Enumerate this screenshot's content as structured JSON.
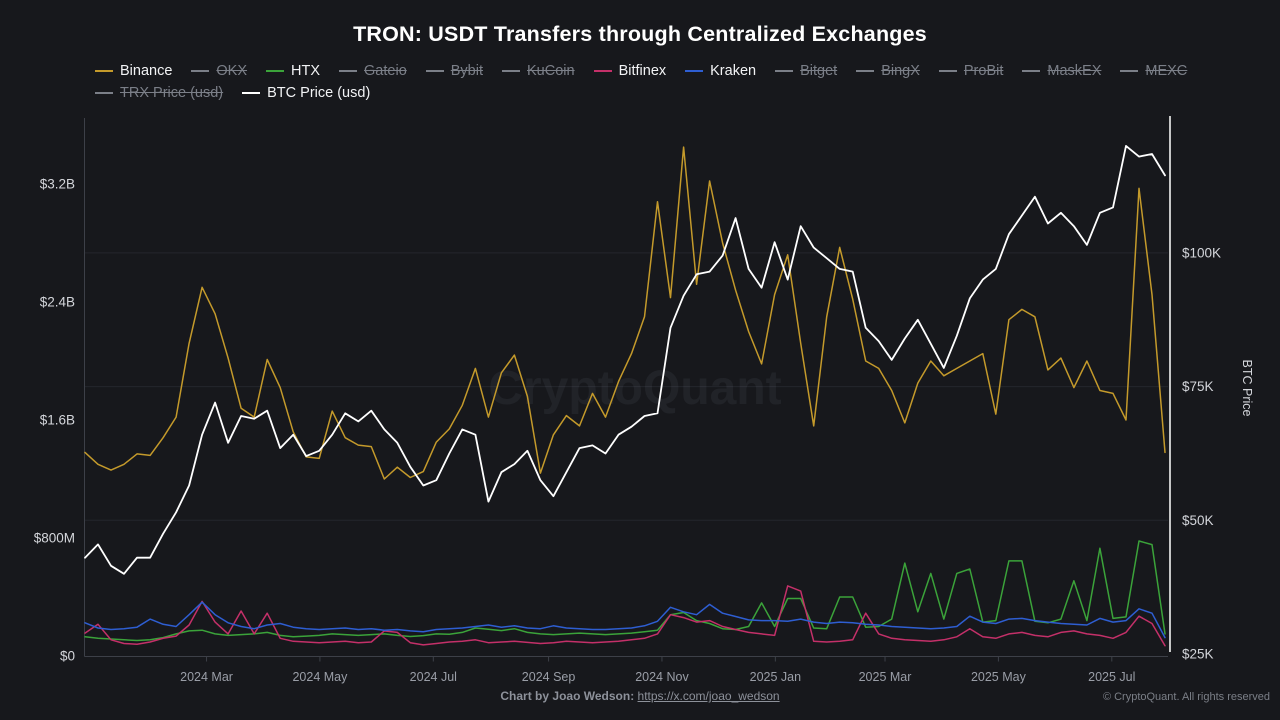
{
  "title": "TRON: USDT Transfers through Centralized Exchanges",
  "watermark": "CryptoQuant",
  "colors": {
    "background": "#17181c",
    "binance": "#c49a2b",
    "htx": "#3ba33a",
    "bitfinex": "#c43069",
    "kraken": "#2e5ed2",
    "btc": "#ffffff",
    "legend_disabled": "#7b7f88",
    "grid": "#24262c",
    "axis_line": "#3d4048",
    "right_axis_line": "#ffffff",
    "y_tick_label": "#d4d6db",
    "x_tick_label": "#9a9ea7",
    "watermark": "rgba(226,232,246,0.055)"
  },
  "legend": {
    "rows": [
      [
        {
          "label": "Binance",
          "color": "#c49a2b",
          "disabled": false
        },
        {
          "label": "OKX",
          "color": "#7b7f88",
          "disabled": true
        },
        {
          "label": "HTX",
          "color": "#3ba33a",
          "disabled": false
        },
        {
          "label": "Gateio",
          "color": "#7b7f88",
          "disabled": true
        },
        {
          "label": "Bybit",
          "color": "#7b7f88",
          "disabled": true
        },
        {
          "label": "KuCoin",
          "color": "#7b7f88",
          "disabled": true
        },
        {
          "label": "Bitfinex",
          "color": "#c43069",
          "disabled": false
        },
        {
          "label": "Kraken",
          "color": "#2e5ed2",
          "disabled": false
        },
        {
          "label": "Bitget",
          "color": "#7b7f88",
          "disabled": true
        },
        {
          "label": "BingX",
          "color": "#7b7f88",
          "disabled": true
        },
        {
          "label": "ProBit",
          "color": "#7b7f88",
          "disabled": true
        },
        {
          "label": "MaskEX",
          "color": "#7b7f88",
          "disabled": true
        },
        {
          "label": "MEXC",
          "color": "#7b7f88",
          "disabled": true
        }
      ],
      [
        {
          "label": "TRX Price (usd)",
          "color": "#7b7f88",
          "disabled": true
        },
        {
          "label": "BTC Price (usd)",
          "color": "#ffffff",
          "disabled": false
        }
      ]
    ]
  },
  "footer": {
    "credit_label": "Chart by Joao Wedson:",
    "credit_link_text": "https://x.com/joao_wedson",
    "credit_link_href": "https://x.com/joao_wedson",
    "copyright": "© CryptoQuant. All rights reserved"
  },
  "chart_data": {
    "type": "line",
    "title": "TRON: USDT Transfers through Centralized Exchanges",
    "legend_position": "top-left",
    "grid": "horizontal gridlines aligned to right-axis ticks",
    "x_dates": [
      "2024-01-01",
      "2024-01-08",
      "2024-01-15",
      "2024-01-22",
      "2024-01-29",
      "2024-02-05",
      "2024-02-12",
      "2024-02-19",
      "2024-02-26",
      "2024-03-04",
      "2024-03-11",
      "2024-03-18",
      "2024-03-25",
      "2024-04-01",
      "2024-04-08",
      "2024-04-15",
      "2024-04-22",
      "2024-04-29",
      "2024-05-06",
      "2024-05-13",
      "2024-05-20",
      "2024-05-27",
      "2024-06-03",
      "2024-06-10",
      "2024-06-17",
      "2024-06-24",
      "2024-07-01",
      "2024-07-08",
      "2024-07-15",
      "2024-07-22",
      "2024-07-29",
      "2024-08-05",
      "2024-08-12",
      "2024-08-19",
      "2024-08-26",
      "2024-09-02",
      "2024-09-09",
      "2024-09-16",
      "2024-09-23",
      "2024-09-30",
      "2024-10-07",
      "2024-10-14",
      "2024-10-21",
      "2024-10-28",
      "2024-11-04",
      "2024-11-11",
      "2024-11-18",
      "2024-11-25",
      "2024-12-02",
      "2024-12-09",
      "2024-12-16",
      "2024-12-23",
      "2024-12-30",
      "2025-01-06",
      "2025-01-13",
      "2025-01-20",
      "2025-01-27",
      "2025-02-03",
      "2025-02-10",
      "2025-02-17",
      "2025-02-24",
      "2025-03-03",
      "2025-03-10",
      "2025-03-17",
      "2025-03-24",
      "2025-03-31",
      "2025-04-07",
      "2025-04-14",
      "2025-04-21",
      "2025-04-28",
      "2025-05-05",
      "2025-05-12",
      "2025-05-19",
      "2025-05-26",
      "2025-06-02",
      "2025-06-09",
      "2025-06-16",
      "2025-06-23",
      "2025-06-30",
      "2025-07-07",
      "2025-07-14",
      "2025-07-21",
      "2025-07-28",
      "2025-08-04"
    ],
    "x_tick_labels": [
      "2024 Mar",
      "2024 May",
      "2024 Jul",
      "2024 Sep",
      "2024 Nov",
      "2025 Jan",
      "2025 Mar",
      "2025 May",
      "2025 Jul"
    ],
    "x_tick_dates": [
      "2024-03-01",
      "2024-05-01",
      "2024-07-01",
      "2024-09-01",
      "2024-11-01",
      "2025-01-01",
      "2025-03-01",
      "2025-05-01",
      "2025-07-01"
    ],
    "left_axis": {
      "unit": "USD",
      "ticks": [
        "$0",
        "$800M",
        "$1.6B",
        "$2.4B",
        "$3.2B"
      ],
      "tick_values_musd": [
        0,
        800,
        1600,
        2400,
        3200
      ]
    },
    "right_axis": {
      "label": "BTC Price",
      "unit": "USD",
      "ticks": [
        "$25K",
        "$50K",
        "$75K",
        "$100K"
      ],
      "tick_values_kusd": [
        25,
        50,
        75,
        100
      ]
    },
    "series": [
      {
        "name": "Binance",
        "axis": "left",
        "unit": "USD millions",
        "color": "#c49a2b",
        "values": [
          1380,
          1300,
          1260,
          1300,
          1370,
          1360,
          1480,
          1620,
          2120,
          2500,
          2320,
          2020,
          1680,
          1620,
          2010,
          1820,
          1520,
          1350,
          1340,
          1660,
          1480,
          1430,
          1420,
          1200,
          1280,
          1210,
          1250,
          1450,
          1540,
          1700,
          1950,
          1620,
          1920,
          2040,
          1760,
          1240,
          1500,
          1630,
          1560,
          1780,
          1620,
          1860,
          2050,
          2300,
          3080,
          2430,
          3450,
          2520,
          3220,
          2800,
          2480,
          2200,
          1980,
          2450,
          2720,
          2120,
          1560,
          2300,
          2770,
          2420,
          2000,
          1950,
          1800,
          1580,
          1850,
          2000,
          1900,
          1950,
          2000,
          2050,
          1640,
          2280,
          2350,
          2300,
          1940,
          2020,
          1820,
          2000,
          1800,
          1780,
          1600,
          3170,
          2450,
          1380
        ]
      },
      {
        "name": "HTX",
        "axis": "left",
        "unit": "USD millions",
        "color": "#3ba33a",
        "values": [
          130,
          120,
          115,
          110,
          105,
          110,
          125,
          150,
          170,
          175,
          150,
          140,
          145,
          150,
          160,
          140,
          130,
          135,
          140,
          150,
          145,
          140,
          145,
          150,
          140,
          132,
          138,
          150,
          148,
          160,
          190,
          182,
          172,
          185,
          160,
          150,
          145,
          150,
          155,
          150,
          145,
          150,
          155,
          165,
          175,
          280,
          295,
          240,
          220,
          185,
          180,
          200,
          360,
          200,
          390,
          390,
          190,
          185,
          400,
          400,
          195,
          200,
          250,
          630,
          300,
          560,
          250,
          560,
          590,
          230,
          240,
          645,
          645,
          235,
          225,
          250,
          510,
          240,
          730,
          255,
          265,
          780,
          755,
          150
        ]
      },
      {
        "name": "Bitfinex",
        "axis": "left",
        "unit": "USD millions",
        "color": "#c43069",
        "values": [
          155,
          215,
          110,
          85,
          80,
          95,
          120,
          135,
          210,
          370,
          230,
          150,
          305,
          150,
          290,
          120,
          100,
          95,
          90,
          95,
          100,
          90,
          95,
          170,
          160,
          90,
          75,
          85,
          95,
          100,
          110,
          90,
          95,
          100,
          92,
          85,
          90,
          100,
          95,
          90,
          95,
          100,
          110,
          120,
          150,
          280,
          260,
          230,
          240,
          200,
          180,
          160,
          150,
          140,
          475,
          440,
          100,
          95,
          100,
          110,
          290,
          150,
          120,
          110,
          105,
          100,
          110,
          130,
          185,
          130,
          120,
          150,
          160,
          140,
          130,
          160,
          170,
          150,
          140,
          120,
          160,
          270,
          220,
          70
        ]
      },
      {
        "name": "Kraken",
        "axis": "left",
        "unit": "USD millions",
        "color": "#2e5ed2",
        "values": [
          225,
          190,
          180,
          185,
          195,
          250,
          215,
          200,
          280,
          365,
          280,
          225,
          200,
          185,
          210,
          220,
          195,
          185,
          180,
          185,
          190,
          180,
          185,
          175,
          180,
          170,
          165,
          180,
          185,
          190,
          200,
          210,
          195,
          205,
          190,
          185,
          205,
          190,
          185,
          180,
          180,
          185,
          190,
          205,
          235,
          330,
          300,
          280,
          350,
          290,
          268,
          245,
          240,
          240,
          235,
          250,
          230,
          220,
          230,
          225,
          215,
          210,
          200,
          195,
          190,
          185,
          190,
          200,
          270,
          230,
          220,
          250,
          255,
          240,
          230,
          220,
          215,
          210,
          255,
          230,
          240,
          320,
          290,
          125
        ]
      },
      {
        "name": "BTC Price (usd)",
        "axis": "right",
        "unit": "USD thousands",
        "color": "#ffffff",
        "values": [
          43,
          45.5,
          41.5,
          40,
          43,
          43,
          47.5,
          51.5,
          56.5,
          66,
          72,
          64.5,
          69.5,
          69,
          70.5,
          63.5,
          66,
          62,
          63,
          66,
          70,
          68.5,
          70.5,
          67,
          64.5,
          60,
          56.5,
          57.5,
          62.5,
          67,
          66,
          53.5,
          59,
          60.5,
          63,
          57.5,
          54.5,
          59,
          63.5,
          64,
          62.5,
          66,
          67.5,
          69.5,
          70,
          86,
          92,
          96,
          96.5,
          99.5,
          106.5,
          97,
          93.5,
          102,
          95,
          105,
          101,
          99,
          97,
          96.5,
          86,
          83.5,
          80,
          84,
          87.5,
          83,
          78.5,
          84.5,
          91.5,
          95,
          97,
          103.5,
          107,
          110.5,
          105.5,
          107.5,
          105,
          101.5,
          107.5,
          108.5,
          120,
          118,
          118.5,
          114.5
        ]
      }
    ]
  }
}
